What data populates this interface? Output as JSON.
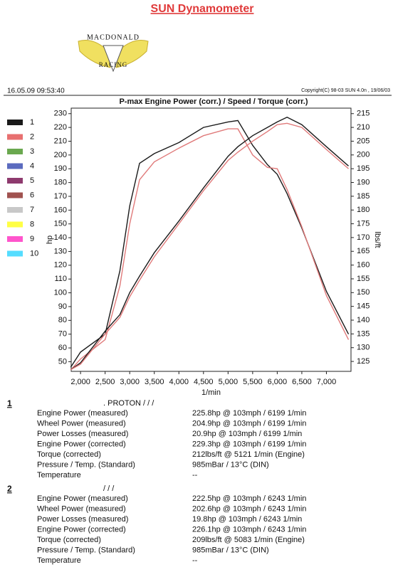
{
  "header": {
    "title": "SUN Dynamometer",
    "logo_top": "MACDONALD",
    "logo_bottom": "RACING",
    "timestamp": "16.05.09 09:53:40",
    "copyright": "Copyright(C) 98-03 SUN 4.0n , 19/06/03"
  },
  "chart_data": {
    "type": "line",
    "title": "P-max Engine Power  (corr.) / Speed / Torque (corr.)",
    "x_label": "1/min",
    "y_label": "hp",
    "y2_label": "lbs/ft",
    "x": [
      1800,
      2000,
      2500,
      2800,
      3000,
      3200,
      3500,
      4000,
      4500,
      5000,
      5200,
      5500,
      5800,
      6000,
      6200,
      6500,
      7000,
      7450
    ],
    "xlim": [
      1810,
      7500
    ],
    "xticks": [
      {
        "value": 2000,
        "label": "2,000"
      },
      {
        "value": 2500,
        "label": "2,500"
      },
      {
        "value": 3000,
        "label": "3,000"
      },
      {
        "value": 3500,
        "label": "3,500"
      },
      {
        "value": 4000,
        "label": "4,000"
      },
      {
        "value": 4500,
        "label": "4,500"
      },
      {
        "value": 5000,
        "label": "5,000"
      },
      {
        "value": 5500,
        "label": "5,500"
      },
      {
        "value": 6000,
        "label": "6,000"
      },
      {
        "value": 6500,
        "label": "6,500"
      },
      {
        "value": 7000,
        "label": "7,000"
      }
    ],
    "ylim": [
      43,
      234
    ],
    "yticks": [
      50,
      60,
      70,
      80,
      90,
      100,
      110,
      120,
      130,
      140,
      150,
      160,
      170,
      180,
      190,
      200,
      210,
      220,
      230
    ],
    "y2lim": [
      121.4,
      217
    ],
    "y2ticks": [
      125,
      130,
      135,
      140,
      145,
      150,
      155,
      160,
      165,
      170,
      175,
      180,
      185,
      190,
      195,
      200,
      205,
      210,
      215
    ],
    "series": [
      {
        "color": "#1a1a1a",
        "values": [
          46,
          57,
          70,
          116,
          163,
          194,
          201,
          209,
          220,
          224,
          225,
          207,
          193,
          186,
          172,
          147,
          101,
          70
        ]
      },
      {
        "color": "#e07a7a",
        "values": [
          44,
          52,
          66,
          105,
          150,
          182,
          195,
          205,
          214,
          219,
          219,
          200,
          191,
          190,
          175,
          148,
          98,
          66
        ]
      },
      {
        "color": "#1a1a1a",
        "axis": "y2",
        "values": [
          122,
          124.5,
          136,
          142,
          150,
          156,
          164.5,
          176,
          188,
          199.5,
          203,
          207,
          210,
          212,
          213.7,
          211,
          203,
          196
        ]
      },
      {
        "color": "#e07a7a",
        "axis": "y2",
        "values": [
          122,
          124,
          135,
          141,
          148.5,
          154.5,
          163,
          175,
          187,
          198,
          201,
          205,
          208.5,
          211,
          211.5,
          210,
          202,
          195
        ]
      }
    ],
    "legend": [
      {
        "label": "1",
        "color": "#1a1a1a"
      },
      {
        "label": "2",
        "color": "#e87070"
      },
      {
        "label": "3",
        "color": "#6aa84f"
      },
      {
        "label": "4",
        "color": "#5b6bbf"
      },
      {
        "label": "5",
        "color": "#8e3a6e"
      },
      {
        "label": "6",
        "color": "#a0524f"
      },
      {
        "label": "7",
        "color": "#c8c8c8"
      },
      {
        "label": "8",
        "color": "#ffff44"
      },
      {
        "label": "9",
        "color": "#ff55cc"
      },
      {
        "label": "10",
        "color": "#55ddff"
      }
    ]
  },
  "runs": [
    {
      "number": "1",
      "vehicle": ". PROTON /  /  /",
      "rows": [
        [
          "Engine Power (measured)",
          "225.8hp @ 103mph / 6199 1/min"
        ],
        [
          "Wheel Power (measured)",
          "204.9hp @ 103mph / 6199 1/min"
        ],
        [
          "Power Losses (measured)",
          "20.9hp @ 103mph / 6199 1/min"
        ],
        [
          "Engine Power (corrected)",
          "229.3hp @ 103mph / 6199 1/min"
        ],
        [
          "Torque (corrected)",
          "212lbs/ft @ 5121 1/min (Engine)"
        ],
        [
          "Pressure / Temp. (Standard)",
          "985mBar / 13°C (DIN)"
        ],
        [
          "Temperature",
          "--"
        ]
      ]
    },
    {
      "number": "2",
      "vehicle": "/  /  /",
      "rows": [
        [
          "Engine Power (measured)",
          "222.5hp @ 103mph / 6243 1/min"
        ],
        [
          "Wheel Power (measured)",
          "202.6hp @ 103mph / 6243 1/min"
        ],
        [
          "Power Losses (measured)",
          "19.8hp @ 103mph / 6243 1/min"
        ],
        [
          "Engine Power (corrected)",
          "226.1hp @ 103mph / 6243 1/min"
        ],
        [
          "Torque (corrected)",
          "209lbs/ft @ 5083 1/min (Engine)"
        ],
        [
          "Pressure / Temp. (Standard)",
          "985mBar / 13°C (DIN)"
        ],
        [
          "Temperature",
          "--"
        ]
      ]
    }
  ]
}
